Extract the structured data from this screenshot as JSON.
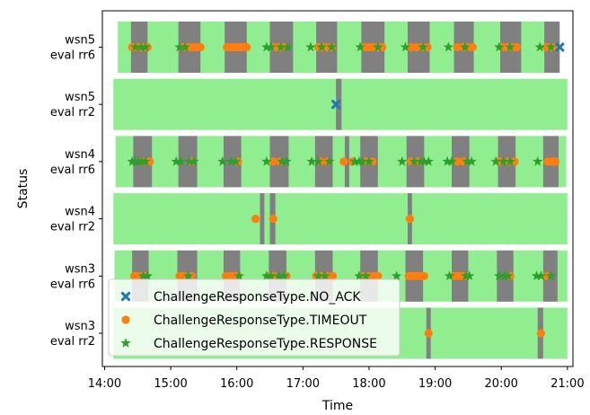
{
  "chart_data": {
    "type": "scatter",
    "xlabel": "Time",
    "ylabel": "Status",
    "x_ticks": [
      "14:00",
      "15:00",
      "16:00",
      "17:00",
      "18:00",
      "19:00",
      "20:00",
      "21:00"
    ],
    "xlim": [
      "13:58",
      "21:05"
    ],
    "grid": false,
    "legend": {
      "location": "lower-left",
      "entries": [
        {
          "label": "ChallengeResponseType.NO_ACK",
          "marker": "x",
          "color": "#1f77b4"
        },
        {
          "label": "ChallengeResponseType.TIMEOUT",
          "marker": "o",
          "color": "#ff7f0e"
        },
        {
          "label": "ChallengeResponseType.RESPONSE",
          "marker": "star",
          "color": "#2ca02c"
        }
      ]
    },
    "colors": {
      "ok_band": "#90ee90",
      "fault_band": "#808080",
      "no_ack": "#1f77b4",
      "timeout": "#ff7f0e",
      "response": "#2ca02c"
    },
    "rows": [
      {
        "label": [
          "wsn5",
          "eval rr6"
        ],
        "range": [
          "14:12",
          "20:52"
        ],
        "gray": [
          [
            "14:24",
            "14:39"
          ],
          [
            "15:07",
            "15:27"
          ],
          [
            "15:49",
            "16:09"
          ],
          [
            "16:30",
            "16:51"
          ],
          [
            "17:12",
            "17:31"
          ],
          [
            "17:53",
            "18:14"
          ],
          [
            "18:35",
            "18:55"
          ],
          [
            "19:17",
            "19:35"
          ],
          [
            "19:59",
            "20:18"
          ],
          [
            "20:39",
            "20:51"
          ],
          [
            "20:50",
            "20:53"
          ]
        ],
        "timeout": [
          "14:25",
          "14:28",
          "14:31",
          "14:34",
          "14:37",
          "14:39",
          "15:11",
          "15:16",
          "15:20",
          "15:24",
          "15:27",
          "15:51",
          "15:54",
          "15:57",
          "16:00",
          "16:03",
          "16:06",
          "16:09",
          "16:34",
          "16:38",
          "16:42",
          "17:14",
          "17:18",
          "17:22",
          "17:26",
          "17:56",
          "18:00",
          "18:04",
          "18:08",
          "18:12",
          "18:38",
          "18:43",
          "18:48",
          "18:53",
          "19:20",
          "19:25",
          "19:30",
          "19:34",
          "20:01",
          "20:05",
          "20:10",
          "20:14",
          "20:41",
          "20:45",
          "20:49"
        ],
        "response": [
          "14:28",
          "14:33",
          "14:37",
          "15:08",
          "15:13",
          "16:27",
          "16:31",
          "16:40",
          "16:46",
          "17:07",
          "17:17",
          "17:26",
          "17:52",
          "18:08",
          "18:33",
          "18:49",
          "19:12",
          "19:27",
          "19:58",
          "20:08",
          "20:35",
          "20:45"
        ],
        "no_ack": [
          "20:53"
        ]
      },
      {
        "label": [
          "wsn5",
          "eval rr2"
        ],
        "range": [
          "14:08",
          "21:00"
        ],
        "gray": [
          [
            "17:30",
            "17:35"
          ]
        ],
        "timeout": [],
        "response": [],
        "no_ack": [
          "17:30"
        ]
      },
      {
        "label": [
          "wsn4",
          "eval rr6"
        ],
        "range": [
          "14:10",
          "20:59"
        ],
        "gray": [
          [
            "14:26",
            "14:43"
          ],
          [
            "15:07",
            "15:24"
          ],
          [
            "15:48",
            "16:04"
          ],
          [
            "16:30",
            "16:47"
          ],
          [
            "17:11",
            "17:27"
          ],
          [
            "17:38",
            "17:42"
          ],
          [
            "17:52",
            "18:08"
          ],
          [
            "18:34",
            "18:50"
          ],
          [
            "19:15",
            "19:31"
          ],
          [
            "19:57",
            "20:13"
          ],
          [
            "20:38",
            "20:52"
          ]
        ],
        "timeout": [
          "14:35",
          "14:41",
          "15:19",
          "16:01",
          "16:33",
          "16:39",
          "17:16",
          "17:22",
          "17:37",
          "17:45",
          "17:57",
          "18:03",
          "18:38",
          "18:45",
          "19:20",
          "19:26",
          "19:58",
          "20:06",
          "20:12",
          "20:42",
          "20:46",
          "20:49"
        ],
        "response": [
          "14:25",
          "14:28",
          "14:31",
          "14:34",
          "14:37",
          "15:05",
          "15:09",
          "15:17",
          "15:21",
          "15:47",
          "15:55",
          "15:59",
          "16:27",
          "16:41",
          "16:45",
          "17:08",
          "17:14",
          "17:24",
          "17:47",
          "17:51",
          "17:54",
          "18:00",
          "18:30",
          "18:41",
          "18:47",
          "18:50",
          "18:54",
          "19:11",
          "19:15",
          "19:29",
          "19:33",
          "19:55",
          "20:02",
          "20:08",
          "20:33"
        ]
      },
      {
        "label": [
          "wsn4",
          "eval rr2"
        ],
        "range": [
          "14:08",
          "21:00"
        ],
        "gray": [
          [
            "16:21",
            "16:25"
          ],
          [
            "16:30",
            "16:35"
          ],
          [
            "18:35",
            "18:39"
          ]
        ],
        "timeout": [
          "16:17",
          "16:33",
          "18:37"
        ],
        "response": [],
        "no_ack": []
      },
      {
        "label": [
          "wsn3",
          "eval rr6"
        ],
        "range": [
          "14:09",
          "21:00"
        ],
        "gray": [
          [
            "14:25",
            "14:40"
          ],
          [
            "15:06",
            "15:24"
          ],
          [
            "15:48",
            "16:03"
          ],
          [
            "16:29",
            "16:45"
          ],
          [
            "17:11",
            "17:27"
          ],
          [
            "17:52",
            "18:08"
          ],
          [
            "18:33",
            "18:49"
          ],
          [
            "19:15",
            "19:30"
          ],
          [
            "19:56",
            "20:11"
          ],
          [
            "20:38",
            "20:51"
          ]
        ],
        "timeout": [
          "14:27",
          "14:30",
          "14:33",
          "14:37",
          "15:08",
          "15:12",
          "15:19",
          "15:50",
          "15:54",
          "15:58",
          "16:01",
          "16:30",
          "16:34",
          "16:45",
          "17:12",
          "17:16",
          "17:22",
          "17:27",
          "17:55",
          "17:59",
          "18:04",
          "18:08",
          "18:36",
          "18:38",
          "18:41",
          "18:44",
          "18:47",
          "18:50",
          "19:17",
          "19:21",
          "19:24",
          "19:28",
          "20:08",
          "20:41"
        ],
        "response": [
          "14:35",
          "14:39",
          "15:16",
          "16:02",
          "16:27",
          "16:31",
          "16:38",
          "16:43",
          "17:14",
          "17:20",
          "17:51",
          "17:57",
          "18:25",
          "19:13",
          "19:28",
          "19:31",
          "19:58",
          "20:03",
          "20:06",
          "20:32",
          "20:36",
          "20:45"
        ]
      },
      {
        "label": [
          "wsn3",
          "eval rr2"
        ],
        "range": [
          "14:08",
          "21:00"
        ],
        "gray": [
          [
            "18:52",
            "18:56"
          ],
          [
            "20:33",
            "20:38"
          ]
        ],
        "timeout": [
          "18:54",
          "20:36"
        ],
        "response": [],
        "no_ack": []
      }
    ]
  }
}
